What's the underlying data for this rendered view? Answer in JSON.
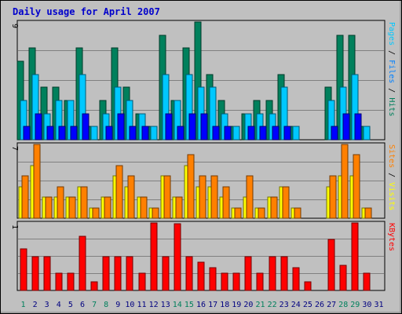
{
  "chart_data": {
    "title": "Daily usage for April 2007",
    "days": [
      "1",
      "2",
      "3",
      "4",
      "5",
      "6",
      "7",
      "8",
      "9",
      "10",
      "11",
      "12",
      "13",
      "14",
      "15",
      "16",
      "17",
      "18",
      "19",
      "20",
      "21",
      "22",
      "23",
      "24",
      "25",
      "26",
      "27",
      "28",
      "29",
      "30",
      "31"
    ],
    "weekend_days": [
      "1",
      "7",
      "8",
      "14",
      "15",
      "21",
      "22",
      "28",
      "29"
    ],
    "colors": {
      "title": "#0000cc",
      "frame_bg": "#c0c0c0",
      "plot_bg": "#c0c0c0",
      "grid": "#808080",
      "weekday_label": "#000080",
      "weekend_label": "#00805c"
    },
    "panels": [
      {
        "type": "bar",
        "scale_label": "9",
        "y_max": 9,
        "side_labels": [
          {
            "text": "Pages",
            "color": "#00c8ff"
          },
          {
            "text": " / ",
            "color": "#000000"
          },
          {
            "text": "Files",
            "color": "#0080ff"
          },
          {
            "text": " / ",
            "color": "#000000"
          },
          {
            "text": "Hits",
            "color": "#00805c"
          }
        ],
        "series": [
          {
            "name": "Hits",
            "color": "#00805c",
            "values": [
              6,
              7,
              4,
              4,
              3,
              7,
              1,
              3,
              7,
              4,
              2,
              1,
              8,
              3,
              7,
              9,
              5,
              3,
              1,
              2,
              3,
              3,
              5,
              1,
              0,
              0,
              4,
              8,
              8,
              1,
              0
            ]
          },
          {
            "name": "Files",
            "color": "#00c8ff",
            "values": [
              3,
              5,
              2,
              3,
              3,
              5,
              1,
              2,
              4,
              3,
              2,
              1,
              5,
              3,
              5,
              4,
              4,
              2,
              1,
              2,
              2,
              2,
              4,
              1,
              0,
              0,
              3,
              4,
              5,
              1,
              0
            ]
          },
          {
            "name": "Pages",
            "color": "#0000ff",
            "values": [
              1,
              2,
              1,
              1,
              1,
              2,
              0,
              1,
              2,
              1,
              1,
              0,
              2,
              1,
              2,
              2,
              1,
              1,
              0,
              1,
              1,
              1,
              1,
              0,
              0,
              0,
              1,
              2,
              2,
              0,
              0
            ]
          }
        ]
      },
      {
        "type": "bar",
        "scale_label": "7",
        "y_max": 7,
        "side_labels": [
          {
            "text": "Sites",
            "color": "#ff8000"
          },
          {
            "text": " / ",
            "color": "#000000"
          },
          {
            "text": "Visits",
            "color": "#ffff00"
          }
        ],
        "series": [
          {
            "name": "Visits",
            "color": "#ffff00",
            "values": [
              3,
              5,
              2,
              2,
              2,
              3,
              1,
              2,
              4,
              3,
              2,
              1,
              4,
              2,
              5,
              3,
              3,
              2,
              1,
              2,
              1,
              2,
              3,
              1,
              0,
              0,
              3,
              4,
              4,
              1,
              0
            ]
          },
          {
            "name": "Sites",
            "color": "#ff8000",
            "values": [
              4,
              7,
              2,
              3,
              2,
              3,
              1,
              2,
              5,
              4,
              2,
              1,
              4,
              2,
              6,
              4,
              4,
              3,
              1,
              4,
              1,
              2,
              3,
              1,
              0,
              0,
              4,
              7,
              6,
              1,
              0
            ]
          }
        ]
      },
      {
        "type": "bar",
        "scale_label": "1",
        "y_max": 1,
        "side_labels": [
          {
            "text": "KBytes",
            "color": "#ff0000"
          }
        ],
        "series": [
          {
            "name": "KBytes",
            "color": "#ff0000",
            "values": [
              0.62,
              0.5,
              0.5,
              0.25,
              0.25,
              0.8,
              0.13,
              0.5,
              0.5,
              0.5,
              0.25,
              1.0,
              0.5,
              0.99,
              0.5,
              0.42,
              0.34,
              0.25,
              0.25,
              0.5,
              0.25,
              0.5,
              0.5,
              0.34,
              0.13,
              0,
              0.75,
              0.37,
              1.0,
              0.25,
              0
            ]
          }
        ]
      }
    ]
  }
}
